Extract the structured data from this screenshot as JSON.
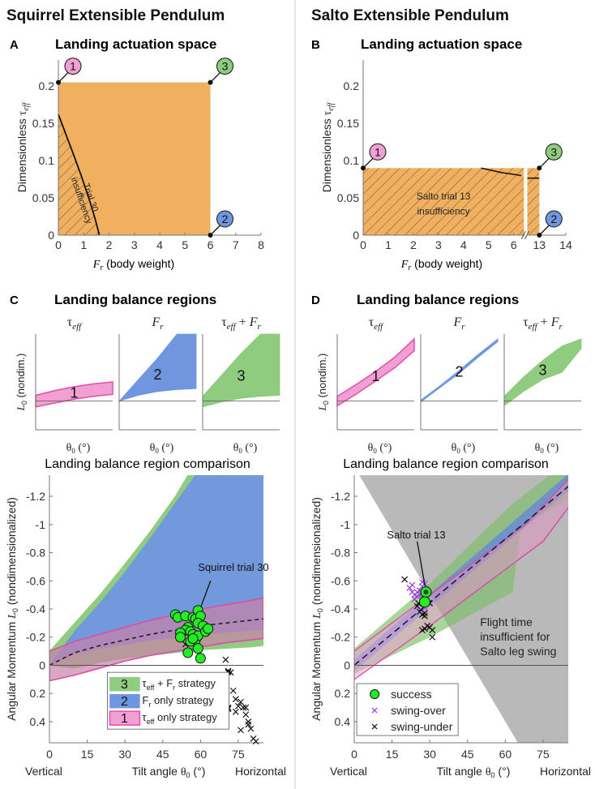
{
  "columns": [
    {
      "title": "Squirrel Extensible Pendulum"
    },
    {
      "title": "Salto Extensible Pendulum"
    }
  ],
  "colors": {
    "orange": "#F0B060",
    "pink": "#E64BB0",
    "pink_fill": "#F0A0D2",
    "blue": "#6E96E6",
    "blue_fill": "#7096E0",
    "green": "#8CC878",
    "green_fill": "#90CC80",
    "success": "#22EE22",
    "swing_over": "#A040E0",
    "gray_region": "#C8C8C8",
    "divider": "#CCCCCC"
  },
  "chart_data": [
    {
      "id": "A",
      "panel_label": "A",
      "type": "area",
      "title": "Landing actuation space",
      "xlabel": "F_r (body weight)",
      "ylabel": "Dimensionless τ_eff",
      "xlim": [
        0,
        8
      ],
      "ylim": [
        0,
        0.235
      ],
      "xticks": [
        0,
        1,
        2,
        3,
        4,
        5,
        6,
        7,
        8
      ],
      "yticks": [
        0,
        0.05,
        0.1,
        0.15,
        0.2
      ],
      "ytick_labels": [
        "0",
        "0.05",
        "0.1",
        "0.15",
        "0.2"
      ],
      "actuation_box": {
        "fr_max": 6,
        "tau_max": 0.205
      },
      "insufficiency_curve": {
        "x": [
          0,
          0.3,
          0.6,
          0.9,
          1.2,
          1.45,
          1.62
        ],
        "y": [
          0.162,
          0.135,
          0.108,
          0.08,
          0.05,
          0.022,
          0
        ]
      },
      "annotation": "Trial 30 insufficiency",
      "annotation_line1": "Trial 30",
      "annotation_line2": "insufficiency",
      "corners": [
        {
          "label": "1",
          "x": 0,
          "y": 0.205,
          "color": "pink"
        },
        {
          "label": "3",
          "x": 6,
          "y": 0.205,
          "color": "green"
        },
        {
          "label": "2",
          "x": 6,
          "y": 0,
          "color": "blue"
        }
      ]
    },
    {
      "id": "B",
      "panel_label": "B",
      "type": "area",
      "title": "Landing actuation space",
      "xlabel": "F_r (body weight)",
      "ylabel": "Dimensionless τ_eff",
      "xlim": [
        0,
        14
      ],
      "ylim": [
        0,
        0.235
      ],
      "axis_break": {
        "from": 6.5,
        "to": 12.7
      },
      "xticks": [
        0,
        1,
        2,
        3,
        4,
        5,
        6,
        13,
        14
      ],
      "yticks": [
        0,
        0.05,
        0.1,
        0.15,
        0.2
      ],
      "ytick_labels": [
        "0",
        "0.05",
        "0.1",
        "0.15",
        "0.2"
      ],
      "actuation_box": {
        "fr_max": 13,
        "tau_max": 0.09
      },
      "insufficiency_curve": {
        "x": [
          4.7,
          5.5,
          6.3,
          13
        ],
        "y": [
          0.09,
          0.084,
          0.08,
          0.076
        ]
      },
      "annotation_line1": "Salto trial 13",
      "annotation_line2": "insufficiency",
      "corners": [
        {
          "label": "1",
          "x": 0,
          "y": 0.09,
          "color": "pink"
        },
        {
          "label": "3",
          "x": 13,
          "y": 0.09,
          "color": "green"
        },
        {
          "label": "2",
          "x": 13,
          "y": 0,
          "color": "blue"
        }
      ]
    },
    {
      "id": "C",
      "panel_label": "C",
      "type": "area",
      "title": "Landing balance regions",
      "ylabel": "L_0 (nondim.)",
      "xlabel": "θ_0 (°)",
      "subplots": [
        {
          "title": "τ_eff",
          "label": "1",
          "color": "pink",
          "upper": [
            0.12,
            0.22,
            0.3,
            0.36,
            0.4
          ],
          "lower": [
            -0.12,
            -0.04,
            0.04,
            0.1,
            0.14
          ]
        },
        {
          "title": "F_r",
          "label": "2",
          "color": "blue",
          "upper": [
            0,
            0.45,
            0.9,
            1.4,
            1.4
          ],
          "lower": [
            0,
            0.12,
            0.2,
            0.24,
            0.26
          ]
        },
        {
          "title": "τ_eff + F_r",
          "label": "3",
          "color": "green",
          "upper": [
            0.1,
            0.55,
            1.0,
            1.4,
            1.4
          ],
          "lower": [
            -0.12,
            -0.02,
            0.06,
            0.1,
            0.12
          ]
        }
      ]
    },
    {
      "id": "D",
      "panel_label": "D",
      "type": "area",
      "title": "Landing balance regions",
      "ylabel": "L_0 (nondim.)",
      "xlabel": "θ_0 (°)",
      "subplots": [
        {
          "title": "τ_eff",
          "label": "1",
          "color": "pink",
          "upper": [
            0.1,
            0.35,
            0.62,
            0.92,
            1.3
          ],
          "lower": [
            -0.1,
            0.15,
            0.42,
            0.7,
            1.05
          ]
        },
        {
          "title": "F_r",
          "label": "2",
          "color": "blue",
          "upper": [
            0.02,
            0.32,
            0.64,
            0.98,
            1.3
          ],
          "lower": [
            -0.02,
            0.28,
            0.58,
            0.92,
            1.24
          ]
        },
        {
          "title": "τ_eff + F_r",
          "label": "3",
          "color": "green",
          "upper": [
            0.1,
            0.5,
            0.85,
            1.15,
            1.3
          ],
          "lower": [
            -0.1,
            0.2,
            0.45,
            0.6,
            1.1
          ]
        }
      ]
    },
    {
      "id": "C2",
      "type": "area",
      "title": "Landing balance region comparison",
      "xlabel": "Tilt angle θ_0 (°)",
      "x_left_label": "Vertical",
      "x_right_label": "Horizontal",
      "ylabel": "Angular Momentum L_0 (nondimensionalized)",
      "xlim": [
        0,
        85
      ],
      "ylim": [
        0.55,
        -1.35
      ],
      "xticks": [
        0,
        15,
        30,
        45,
        60,
        75
      ],
      "yticks": [
        -1.2,
        -1,
        -0.8,
        -0.6,
        -0.4,
        -0.2,
        0,
        0.2,
        0.4
      ],
      "ytick_labels": [
        "-1.2",
        "-1",
        "-0.8",
        "-0.6",
        "-0.4",
        "-0.2",
        "0",
        "0.2",
        "0.4"
      ],
      "x": [
        0,
        10,
        20,
        30,
        40,
        50,
        60,
        70,
        80,
        85
      ],
      "series": [
        {
          "name": "τ_eff + F_r strategy",
          "label": "3",
          "color": "green",
          "upper": [
            -0.1,
            -0.3,
            -0.5,
            -0.72,
            -0.95,
            -1.2,
            -1.5,
            -1.8,
            -2.1,
            -2.3
          ],
          "lower": [
            0,
            0.02,
            -0.02,
            -0.05,
            -0.07,
            -0.09,
            -0.11,
            -0.12,
            -0.13,
            -0.14
          ]
        },
        {
          "name": "F_r only strategy",
          "label": "2",
          "color": "blue",
          "upper": [
            0,
            -0.24,
            -0.44,
            -0.66,
            -0.9,
            -1.15,
            -1.4,
            -1.7,
            -2.0,
            -2.2
          ],
          "lower": [
            0,
            -0.08,
            -0.12,
            -0.15,
            -0.18,
            -0.2,
            -0.22,
            -0.235,
            -0.25,
            -0.255
          ]
        },
        {
          "name": "τ_eff only strategy",
          "label": "1",
          "color": "pink",
          "upper": [
            -0.1,
            -0.17,
            -0.22,
            -0.27,
            -0.32,
            -0.36,
            -0.4,
            -0.43,
            -0.46,
            -0.48
          ],
          "lower": [
            0.11,
            0.07,
            0.02,
            -0.03,
            -0.07,
            -0.1,
            -0.13,
            -0.16,
            -0.18,
            -0.19
          ]
        }
      ],
      "dashed_nominal": {
        "x": [
          0,
          10,
          20,
          30,
          40,
          50,
          60,
          70,
          80,
          85
        ],
        "y": [
          0,
          -0.09,
          -0.14,
          -0.18,
          -0.22,
          -0.25,
          -0.28,
          -0.3,
          -0.32,
          -0.33
        ]
      },
      "success_points": [
        [
          50,
          -0.36
        ],
        [
          51,
          -0.34
        ],
        [
          54,
          -0.35
        ],
        [
          57,
          -0.34
        ],
        [
          58,
          -0.33
        ],
        [
          59,
          -0.39
        ],
        [
          60,
          -0.35
        ],
        [
          59,
          -0.3
        ],
        [
          55,
          -0.27
        ],
        [
          54,
          -0.25
        ],
        [
          56,
          -0.24
        ],
        [
          57,
          -0.22
        ],
        [
          52,
          -0.23
        ],
        [
          52,
          -0.2
        ],
        [
          58,
          -0.18
        ],
        [
          59,
          -0.21
        ],
        [
          61,
          -0.28
        ],
        [
          62,
          -0.24
        ],
        [
          63,
          -0.26
        ],
        [
          56,
          -0.17
        ],
        [
          55,
          -0.09
        ],
        [
          59,
          -0.12
        ],
        [
          60,
          -0.05
        ],
        [
          57,
          -0.19
        ]
      ],
      "swing_under_points": [
        [
          70,
          -0.04
        ],
        [
          71,
          0.05
        ],
        [
          72,
          0.05
        ],
        [
          71,
          0.04
        ],
        [
          70,
          0.25
        ],
        [
          71,
          0.3
        ],
        [
          71,
          0.31
        ],
        [
          73,
          0.18
        ],
        [
          74,
          0.24
        ],
        [
          74,
          0.33
        ],
        [
          75,
          0.29
        ],
        [
          76,
          0.26
        ],
        [
          77,
          0.3
        ],
        [
          78,
          0.3
        ],
        [
          78,
          0.35
        ],
        [
          79,
          0.4
        ],
        [
          79,
          0.42
        ],
        [
          80,
          0.45
        ],
        [
          81,
          0.52
        ],
        [
          82,
          0.54
        ],
        [
          76,
          0.46
        ],
        [
          54,
          -0.15
        ]
      ],
      "annotation": "Squirrel trial 30",
      "annotation_target": [
        59,
        -0.36
      ],
      "legend_position": "bottom-center"
    },
    {
      "id": "D2",
      "type": "area",
      "title": "Landing balance region comparison",
      "xlabel": "Tilt angle θ_0 (°)",
      "x_left_label": "Vertical",
      "x_right_label": "Horizontal",
      "ylabel": "Angular Momentum L_0 (nondimensionalized)",
      "xlim": [
        0,
        85
      ],
      "ylim": [
        0.55,
        -1.35
      ],
      "xticks": [
        0,
        15,
        30,
        45,
        60,
        75
      ],
      "yticks": [
        -1.2,
        -1,
        -0.8,
        -0.6,
        -0.4,
        -0.2,
        0,
        0.2,
        0.4
      ],
      "ytick_labels": [
        "-1.2",
        "-1",
        "-0.8",
        "-0.6",
        "-0.4",
        "-0.2",
        "0",
        "0.2",
        "0.4"
      ],
      "flight_time_region": {
        "label_lines": [
          "Flight time",
          "insufficient for",
          "Salto leg swing"
        ],
        "vertices": [
          [
            2,
            -1.35
          ],
          [
            85,
            -1.35
          ],
          [
            85,
            0.55
          ],
          [
            65,
            0.55
          ]
        ]
      },
      "series": [
        {
          "name": "τ_eff + F_r strategy",
          "label": "3",
          "color": "green",
          "poly": [
            [
              0,
              -0.12
            ],
            [
              30,
              -0.58
            ],
            [
              63,
              -1.15
            ],
            [
              85,
              -1.45
            ],
            [
              85,
              -1.18
            ],
            [
              66,
              -0.98
            ],
            [
              63,
              -0.52
            ],
            [
              30,
              -0.2
            ],
            [
              0,
              0.06
            ]
          ]
        },
        {
          "name": "F_r only strategy",
          "label": "2",
          "color": "blue",
          "poly": [
            [
              0,
              -0.04
            ],
            [
              85,
              -1.36
            ],
            [
              85,
              -1.24
            ],
            [
              0,
              0.04
            ]
          ]
        },
        {
          "name": "τ_eff only strategy",
          "label": "1",
          "color": "pink",
          "poly": [
            [
              0,
              -0.1
            ],
            [
              30,
              -0.5
            ],
            [
              68,
              -1.0
            ],
            [
              85,
              -1.32
            ],
            [
              85,
              -1.12
            ],
            [
              75,
              -0.88
            ],
            [
              30,
              -0.28
            ],
            [
              0,
              0.1
            ]
          ],
          "upper_line": [
            [
              0,
              -0.1
            ],
            [
              30,
              -0.5
            ],
            [
              68,
              -1.0
            ],
            [
              85,
              -1.32
            ]
          ],
          "lower_line": [
            [
              0,
              0.1
            ],
            [
              30,
              -0.28
            ],
            [
              75,
              -0.88
            ],
            [
              85,
              -1.12
            ]
          ]
        }
      ],
      "pink_dark_region": [
        [
          32,
          -0.5
        ],
        [
          68,
          -0.95
        ],
        [
          85,
          -1.3
        ],
        [
          85,
          -1.12
        ],
        [
          73,
          -0.88
        ],
        [
          68,
          -0.95
        ]
      ],
      "dashed_nominal": {
        "x": [
          0,
          85
        ],
        "y": [
          0,
          -1.27
        ]
      },
      "success_points": [
        [
          28.5,
          -0.52
        ],
        [
          28,
          -0.45
        ]
      ],
      "swing_over_points": [
        [
          22,
          -0.55
        ],
        [
          23,
          -0.52
        ],
        [
          24,
          -0.5
        ],
        [
          25,
          -0.52
        ],
        [
          25,
          -0.49
        ],
        [
          26,
          -0.53
        ],
        [
          27,
          -0.59
        ],
        [
          27,
          -0.56
        ],
        [
          28,
          -0.58
        ],
        [
          26,
          -0.5
        ],
        [
          24,
          -0.47
        ],
        [
          28,
          -0.41
        ],
        [
          27,
          -0.5
        ],
        [
          23,
          -0.57
        ]
      ],
      "swing_under_points": [
        [
          20,
          -0.61
        ],
        [
          25,
          -0.42
        ],
        [
          26,
          -0.38
        ],
        [
          27,
          -0.36
        ],
        [
          28,
          -0.35
        ],
        [
          28,
          -0.37
        ],
        [
          30,
          -0.44
        ],
        [
          27,
          -0.25
        ],
        [
          29,
          -0.28
        ],
        [
          30,
          -0.27
        ],
        [
          31,
          -0.25
        ],
        [
          31,
          -0.2
        ],
        [
          28,
          -0.26
        ],
        [
          25.5,
          -0.44
        ]
      ],
      "annotation": "Salto trial 13",
      "annotation_target": [
        28.5,
        -0.52
      ],
      "legend": [
        {
          "name": "success",
          "marker": "circle"
        },
        {
          "name": "swing-over",
          "marker": "x-purple"
        },
        {
          "name": "swing-under",
          "marker": "x-black"
        }
      ],
      "legend_position": "bottom-left"
    }
  ]
}
